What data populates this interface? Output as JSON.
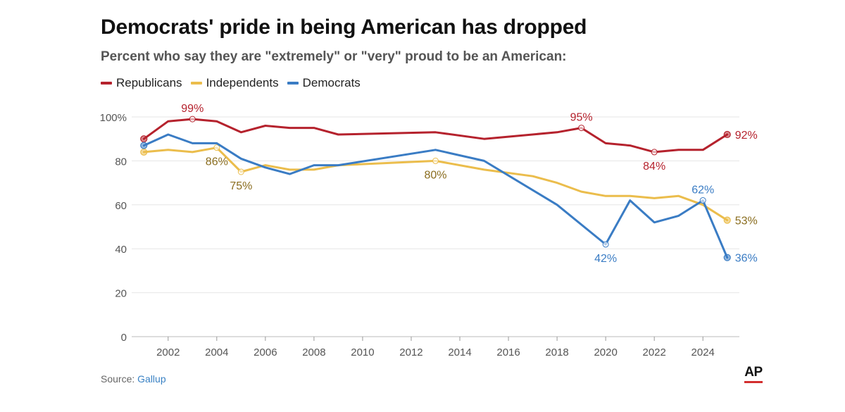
{
  "header": {
    "title": "Democrats' pride in being American has dropped",
    "subtitle": "Percent who say they are \"extremely\" or \"very\" proud to be an American:"
  },
  "footer": {
    "source_label": "Source:",
    "source_link": "Gallup",
    "logo_text": "AP"
  },
  "chart_data": {
    "type": "line",
    "xlim": [
      2000.5,
      2025.5
    ],
    "ylim": [
      0,
      100
    ],
    "y_ticks": [
      {
        "value": 0,
        "label": "0"
      },
      {
        "value": 20,
        "label": "20"
      },
      {
        "value": 40,
        "label": "40"
      },
      {
        "value": 60,
        "label": "60"
      },
      {
        "value": 80,
        "label": "80"
      },
      {
        "value": 100,
        "label": "100%"
      }
    ],
    "x_ticks": [
      {
        "value": 2002,
        "label": "2002"
      },
      {
        "value": 2004,
        "label": "2004"
      },
      {
        "value": 2006,
        "label": "2006"
      },
      {
        "value": 2008,
        "label": "2008"
      },
      {
        "value": 2010,
        "label": "2010"
      },
      {
        "value": 2012,
        "label": "2012"
      },
      {
        "value": 2014,
        "label": "2014"
      },
      {
        "value": 2016,
        "label": "2016"
      },
      {
        "value": 2018,
        "label": "2018"
      },
      {
        "value": 2020,
        "label": "2020"
      },
      {
        "value": 2022,
        "label": "2022"
      },
      {
        "value": 2024,
        "label": "2024"
      }
    ],
    "grid": true,
    "legend_position": "top-left",
    "series": [
      {
        "name": "Republicans",
        "color": "#b5222d",
        "label_color": "#b5222d",
        "points": [
          [
            2001,
            90
          ],
          [
            2002,
            98
          ],
          [
            2003,
            99
          ],
          [
            2004,
            98
          ],
          [
            2005,
            93
          ],
          [
            2006,
            96
          ],
          [
            2007,
            95
          ],
          [
            2008,
            95
          ],
          [
            2009,
            92
          ],
          [
            2013,
            93
          ],
          [
            2015,
            90
          ],
          [
            2018,
            93
          ],
          [
            2019,
            95
          ],
          [
            2020,
            88
          ],
          [
            2021,
            87
          ],
          [
            2022,
            84
          ],
          [
            2023,
            85
          ],
          [
            2024,
            85
          ],
          [
            2025,
            92
          ]
        ],
        "annotations": [
          {
            "x": 2003,
            "y": 99,
            "label": "99%",
            "pos": "above"
          },
          {
            "x": 2019,
            "y": 95,
            "label": "95%",
            "pos": "above"
          },
          {
            "x": 2022,
            "y": 84,
            "label": "84%",
            "pos": "below"
          },
          {
            "x": 2025,
            "y": 92,
            "label": "92%",
            "pos": "right",
            "end": true
          }
        ]
      },
      {
        "name": "Independents",
        "color": "#ebbd4c",
        "label_color": "#8a6d1f",
        "points": [
          [
            2001,
            84
          ],
          [
            2002,
            85
          ],
          [
            2003,
            84
          ],
          [
            2004,
            86
          ],
          [
            2005,
            75
          ],
          [
            2006,
            78
          ],
          [
            2007,
            76
          ],
          [
            2008,
            76
          ],
          [
            2009,
            78
          ],
          [
            2013,
            80
          ],
          [
            2015,
            76
          ],
          [
            2017,
            73
          ],
          [
            2018,
            70
          ],
          [
            2019,
            66
          ],
          [
            2020,
            64
          ],
          [
            2021,
            64
          ],
          [
            2022,
            63
          ],
          [
            2023,
            64
          ],
          [
            2024,
            60
          ],
          [
            2025,
            53
          ]
        ],
        "annotations": [
          {
            "x": 2004,
            "y": 86,
            "label": "86%",
            "pos": "below"
          },
          {
            "x": 2005,
            "y": 75,
            "label": "75%",
            "pos": "below"
          },
          {
            "x": 2013,
            "y": 80,
            "label": "80%",
            "pos": "below"
          },
          {
            "x": 2025,
            "y": 53,
            "label": "53%",
            "pos": "right",
            "end": true
          }
        ]
      },
      {
        "name": "Democrats",
        "color": "#3a7cc4",
        "label_color": "#3a7cc4",
        "points": [
          [
            2001,
            87
          ],
          [
            2002,
            92
          ],
          [
            2003,
            88
          ],
          [
            2004,
            88
          ],
          [
            2005,
            81
          ],
          [
            2006,
            77
          ],
          [
            2007,
            74
          ],
          [
            2008,
            78
          ],
          [
            2009,
            78
          ],
          [
            2013,
            85
          ],
          [
            2015,
            80
          ],
          [
            2018,
            60
          ],
          [
            2020,
            42
          ],
          [
            2021,
            62
          ],
          [
            2022,
            52
          ],
          [
            2023,
            55
          ],
          [
            2024,
            62
          ],
          [
            2025,
            36
          ]
        ],
        "annotations": [
          {
            "x": 2020,
            "y": 42,
            "label": "42%",
            "pos": "below"
          },
          {
            "x": 2024,
            "y": 62,
            "label": "62%",
            "pos": "above"
          },
          {
            "x": 2025,
            "y": 36,
            "label": "36%",
            "pos": "right",
            "end": true
          }
        ]
      }
    ]
  }
}
